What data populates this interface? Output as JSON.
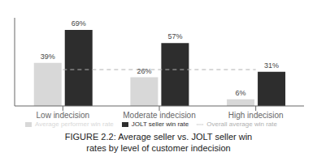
{
  "chart_data": {
    "type": "bar",
    "title": "FIGURE 2.2: Average seller vs. JOLT seller win\nrates by level of customer indecision",
    "categories": [
      "Low indecision",
      "Moderate indecision",
      "High indecision"
    ],
    "series": [
      {
        "name": "Average performer win rate",
        "type": "bar",
        "color": "#d8d8d8",
        "values": [
          39,
          26,
          6
        ],
        "value_labels": [
          "39%",
          "26%",
          "6%"
        ]
      },
      {
        "name": "JOLT seller win rate",
        "type": "bar",
        "color": "#2d2d2d",
        "values": [
          69,
          57,
          31
        ],
        "value_labels": [
          "69%",
          "57%",
          "31%"
        ]
      },
      {
        "name": "Overall average win rate",
        "type": "line",
        "line_style": "dashed",
        "color": "#b0b0b0",
        "values": [
          33,
          33,
          33
        ]
      }
    ],
    "ylim": [
      0,
      80
    ],
    "data_labels": true,
    "tick_labels": "x",
    "grid": false,
    "legend": "bottom"
  }
}
